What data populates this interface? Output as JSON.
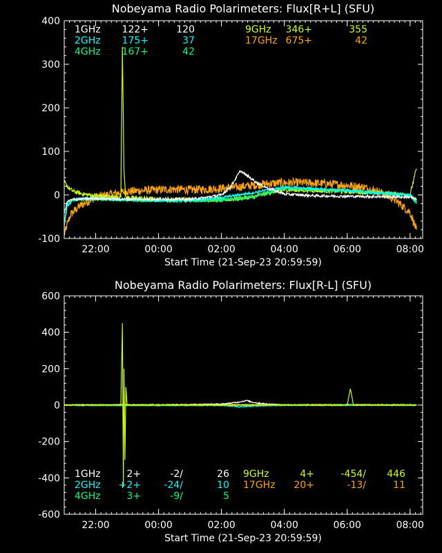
{
  "chart_data": [
    {
      "type": "line",
      "title": "Nobeyama Radio Polarimeters: Flux[R+L] (SFU)",
      "xlabel": "Start Time (21-Sep-23 20:59:59)",
      "ylabel": "",
      "x_ticks": [
        "22:00",
        "00:00",
        "02:00",
        "04:00",
        "06:00",
        "08:00"
      ],
      "x_tick_hours": [
        22,
        24,
        26,
        28,
        30,
        32
      ],
      "xlim": [
        20.9997,
        32.4
      ],
      "ylim": [
        -100,
        400
      ],
      "y_ticks": [
        -100,
        0,
        100,
        200,
        300,
        400
      ],
      "grid": false,
      "legend": [
        {
          "freq": "1GHz",
          "v1": "122+",
          "v2": "120",
          "color": "#ffffff"
        },
        {
          "freq": "2GHz",
          "v1": "175+",
          "v2": "37",
          "color": "#00ffff"
        },
        {
          "freq": "4GHz",
          "v1": "167+",
          "v2": "42",
          "color": "#00ff7f"
        },
        {
          "freq": "9GHz",
          "v1": "346+",
          "v2": "355",
          "color": "#ccff00"
        },
        {
          "freq": "17GHz",
          "v1": "675+",
          "v2": "42",
          "color": "#ffa500"
        }
      ],
      "series": [
        {
          "color": "#ffa500",
          "x": [
            21.0,
            21.2,
            21.5,
            22.0,
            22.5,
            23.0,
            23.5,
            24.0,
            24.5,
            25.0,
            25.5,
            26.0,
            26.5,
            27.0,
            27.5,
            28.0,
            28.5,
            29.0,
            29.5,
            30.0,
            30.5,
            31.0,
            31.5,
            32.0,
            32.2
          ],
          "y": [
            -90,
            -45,
            -25,
            -5,
            2,
            8,
            10,
            12,
            13,
            12,
            13,
            15,
            18,
            22,
            26,
            28,
            28,
            27,
            25,
            22,
            18,
            8,
            -10,
            -40,
            -80
          ],
          "noise": 10
        },
        {
          "color": "#ccff00",
          "x": [
            21.0,
            21.15,
            21.3,
            21.6,
            22.0,
            22.5,
            22.8,
            22.85,
            22.9,
            22.95,
            23.0,
            23.5,
            24.0,
            25.0,
            26.0,
            27.0,
            27.5,
            28.0,
            29.0,
            30.0,
            30.5,
            31.0,
            31.5,
            32.0,
            32.2
          ],
          "y": [
            30,
            15,
            8,
            2,
            -2,
            -5,
            -5,
            340,
            60,
            -4,
            -6,
            -8,
            -10,
            -10,
            -12,
            -5,
            5,
            12,
            10,
            8,
            6,
            5,
            3,
            0,
            60
          ],
          "noise": 5
        },
        {
          "color": "#00ff7f",
          "x": [
            21.0,
            21.1,
            21.3,
            22.0,
            23.0,
            24.0,
            25.0,
            26.0,
            27.0,
            28.0,
            29.0,
            30.0,
            31.0,
            31.5,
            32.0,
            32.2
          ],
          "y": [
            -60,
            -20,
            -12,
            -10,
            -12,
            -14,
            -14,
            -12,
            -5,
            15,
            12,
            10,
            5,
            2,
            0,
            -20
          ],
          "noise": 3
        },
        {
          "color": "#00ffff",
          "x": [
            21.0,
            21.1,
            21.3,
            22.0,
            23.0,
            24.0,
            25.0,
            26.0,
            27.0,
            28.0,
            29.0,
            30.0,
            31.0,
            31.5,
            32.0,
            32.2
          ],
          "y": [
            -70,
            -25,
            -10,
            -8,
            -10,
            -12,
            -12,
            -6,
            5,
            18,
            14,
            10,
            4,
            2,
            0,
            -15
          ],
          "noise": 3
        },
        {
          "color": "#ffffff",
          "x": [
            21.0,
            21.1,
            21.3,
            22.0,
            23.0,
            24.0,
            25.0,
            25.5,
            26.0,
            26.3,
            26.6,
            26.9,
            27.2,
            27.5,
            27.8,
            28.0,
            28.5,
            29.0,
            30.0,
            31.0,
            32.0,
            32.2
          ],
          "y": [
            -40,
            -15,
            -10,
            -8,
            -10,
            -10,
            -10,
            -6,
            0,
            20,
            55,
            40,
            25,
            15,
            8,
            2,
            0,
            -2,
            -3,
            -4,
            -5,
            -10
          ],
          "noise": 3
        }
      ]
    },
    {
      "type": "line",
      "title": "Nobeyama Radio Polarimeters: Flux[R-L] (SFU)",
      "xlabel": "Start Time (21-Sep-23 20:59:59)",
      "ylabel": "",
      "x_ticks": [
        "22:00",
        "00:00",
        "02:00",
        "04:00",
        "06:00",
        "08:00"
      ],
      "x_tick_hours": [
        22,
        24,
        26,
        28,
        30,
        32
      ],
      "xlim": [
        20.9997,
        32.4
      ],
      "ylim": [
        -600,
        600
      ],
      "y_ticks": [
        -600,
        -400,
        -200,
        0,
        200,
        400,
        600
      ],
      "grid": false,
      "legend": [
        {
          "freq": "1GHz",
          "v1": "2+",
          "v2": "-2/",
          "v3": "26",
          "color": "#ffffff"
        },
        {
          "freq": "2GHz",
          "v1": "+2+",
          "v2": "-24/",
          "v3": "10",
          "color": "#00ffff"
        },
        {
          "freq": "4GHz",
          "v1": "3+",
          "v2": "-9/",
          "v3": "5",
          "color": "#00ff7f"
        },
        {
          "freq": "9GHz",
          "v1": "4+",
          "v2": "-454/",
          "v3": "446",
          "color": "#ccff00"
        },
        {
          "freq": "17GHz",
          "v1": "20+",
          "v2": "-13/",
          "v3": "11",
          "color": "#ffa500"
        }
      ],
      "series": [
        {
          "color": "#ffa500",
          "x": [
            21.0,
            22.0,
            24.0,
            26.0,
            28.0,
            30.0,
            32.0,
            32.2
          ],
          "y": [
            0,
            1,
            2,
            3,
            2,
            2,
            1,
            0
          ],
          "noise": 3
        },
        {
          "color": "#00ffff",
          "x": [
            21.0,
            22.0,
            24.0,
            26.0,
            26.6,
            27.0,
            28.0,
            30.0,
            32.0,
            32.2
          ],
          "y": [
            0,
            0,
            0,
            -2,
            -10,
            -5,
            0,
            0,
            0,
            0
          ],
          "noise": 3
        },
        {
          "color": "#ffffff",
          "x": [
            21.0,
            22.0,
            24.0,
            26.0,
            26.5,
            26.8,
            27.0,
            27.5,
            28.0,
            30.0,
            32.0,
            32.2
          ],
          "y": [
            0,
            0,
            0,
            5,
            15,
            25,
            15,
            5,
            0,
            0,
            0,
            0
          ],
          "noise": 3
        },
        {
          "color": "#00ff7f",
          "x": [
            21.0,
            22.0,
            24.0,
            26.0,
            28.0,
            30.0,
            32.0,
            32.2
          ],
          "y": [
            0,
            -2,
            -3,
            -2,
            -1,
            0,
            0,
            0
          ],
          "noise": 2
        },
        {
          "color": "#ccff00",
          "x": [
            21.0,
            22.0,
            22.8,
            22.85,
            22.88,
            22.9,
            22.93,
            22.96,
            23.0,
            24.0,
            26.0,
            28.0,
            30.0,
            30.1,
            30.2,
            31.0,
            32.0,
            32.2
          ],
          "y": [
            0,
            0,
            0,
            450,
            -450,
            200,
            -300,
            100,
            0,
            0,
            0,
            0,
            0,
            90,
            0,
            0,
            0,
            0
          ],
          "noise": 2
        }
      ]
    }
  ]
}
